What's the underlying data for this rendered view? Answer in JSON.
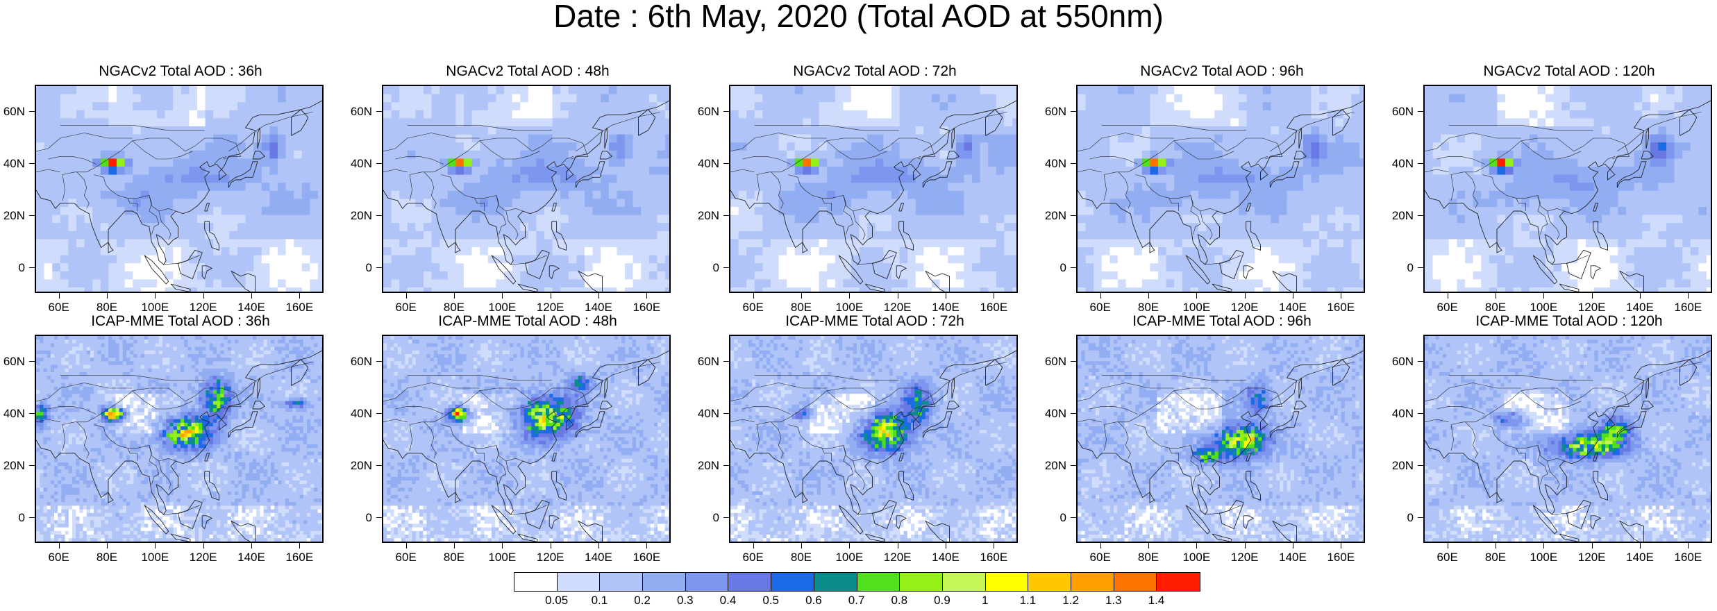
{
  "figure": {
    "title": "Date : 6th May, 2020 (Total AOD at 550nm)"
  },
  "panels": [
    {
      "title": "NGACv2 Total AOD : 36h",
      "model": "ngac",
      "forecast": "36h"
    },
    {
      "title": "NGACv2 Total AOD : 48h",
      "model": "ngac",
      "forecast": "48h"
    },
    {
      "title": "NGACv2 Total AOD : 72h",
      "model": "ngac",
      "forecast": "72h"
    },
    {
      "title": "NGACv2 Total AOD : 96h",
      "model": "ngac",
      "forecast": "96h"
    },
    {
      "title": "NGACv2 Total AOD : 120h",
      "model": "ngac",
      "forecast": "120h"
    },
    {
      "title": "ICAP-MME Total AOD : 36h",
      "model": "icap",
      "forecast": "36h"
    },
    {
      "title": "ICAP-MME Total AOD : 48h",
      "model": "icap",
      "forecast": "48h"
    },
    {
      "title": "ICAP-MME Total AOD : 72h",
      "model": "icap",
      "forecast": "72h"
    },
    {
      "title": "ICAP-MME Total AOD : 96h",
      "model": "icap",
      "forecast": "96h"
    },
    {
      "title": "ICAP-MME Total AOD : 120h",
      "model": "icap",
      "forecast": "120h"
    }
  ],
  "axes": {
    "lat_ticks": [
      "60N",
      "40N",
      "20N",
      "0"
    ],
    "lat_values": [
      60,
      40,
      20,
      0
    ],
    "lon_ticks": [
      "60E",
      "80E",
      "100E",
      "120E",
      "140E",
      "160E"
    ],
    "lon_values": [
      60,
      80,
      100,
      120,
      140,
      160
    ],
    "lon_range": [
      50,
      170
    ],
    "lat_range": [
      -10,
      70
    ]
  },
  "colorbar": {
    "labels": [
      "0.05",
      "0.1",
      "0.2",
      "0.3",
      "0.4",
      "0.5",
      "0.6",
      "0.7",
      "0.8",
      "0.9",
      "1",
      "1.1",
      "1.2",
      "1.3",
      "1.4"
    ],
    "colors": [
      "#ffffff",
      "#cfdcfb",
      "#b1c4f7",
      "#93adf3",
      "#7d97ef",
      "#6a78e4",
      "#1d6ae6",
      "#0a8c8c",
      "#52e01c",
      "#94f018",
      "#c6f55a",
      "#ffff00",
      "#ffc800",
      "#ffa000",
      "#ff7300",
      "#ff1e00"
    ]
  }
}
